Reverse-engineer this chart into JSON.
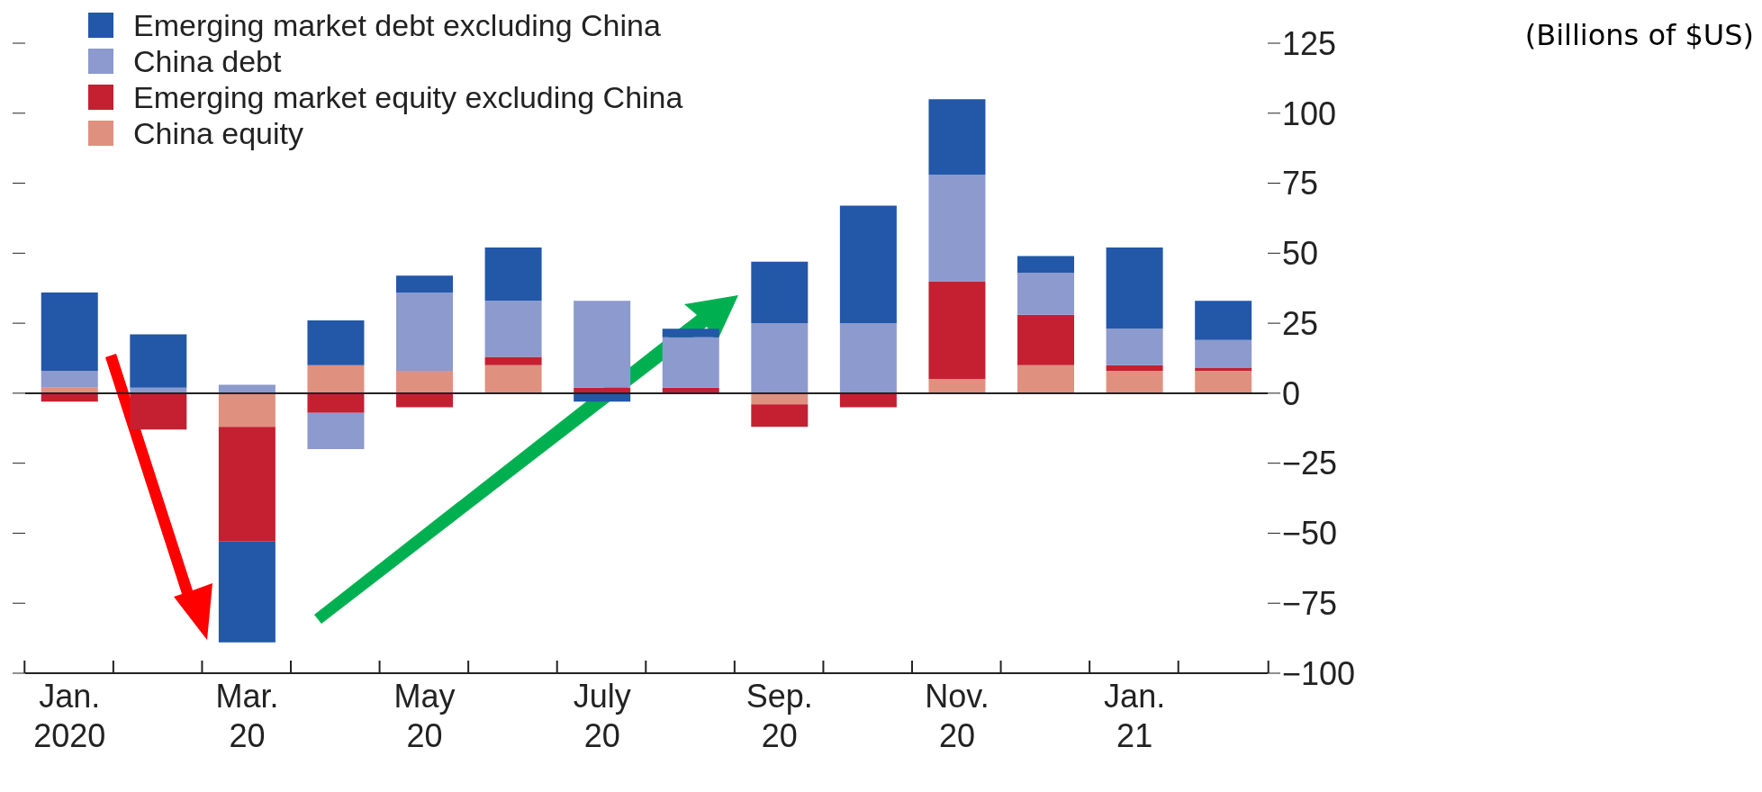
{
  "chart_data": {
    "type": "bar",
    "stacked": true,
    "annotations": [
      "(Billions of $US)"
    ],
    "categories": [
      "Jan.\n2020",
      null,
      "Mar.\n20",
      null,
      "May\n20",
      null,
      "July\n20",
      null,
      "Sep.\n20",
      null,
      "Nov.\n20",
      null,
      "Jan.\n21",
      null
    ],
    "series": [
      {
        "name": "China equity",
        "color": "#e0907f",
        "values": [
          2,
          0,
          -12,
          10,
          8,
          10,
          0,
          0,
          -4,
          0,
          5,
          10,
          8,
          8
        ]
      },
      {
        "name": "Emerging market equity excluding China",
        "color": "#c42032",
        "values": [
          -3,
          -13,
          -41,
          -7,
          -5,
          3,
          2,
          2,
          -8,
          -5,
          35,
          18,
          2,
          1
        ]
      },
      {
        "name": "China debt",
        "color": "#8c9ace",
        "values": [
          6,
          2,
          3,
          -13,
          28,
          20,
          31,
          18,
          25,
          25,
          38,
          15,
          13,
          10
        ]
      },
      {
        "name": "Emerging market debt excluding China",
        "color": "#2357a8",
        "values": [
          28,
          19,
          -36,
          16,
          6,
          19,
          -3,
          3,
          22,
          42,
          27,
          6,
          29,
          14
        ]
      }
    ],
    "ylim": [
      -100,
      125
    ],
    "yticks": [
      -100,
      -75,
      -50,
      -25,
      0,
      25,
      50,
      75,
      100,
      125
    ],
    "ref_lines": [
      {
        "axis": "y",
        "value": 0
      }
    ],
    "legend": "top left",
    "grid": false
  }
}
